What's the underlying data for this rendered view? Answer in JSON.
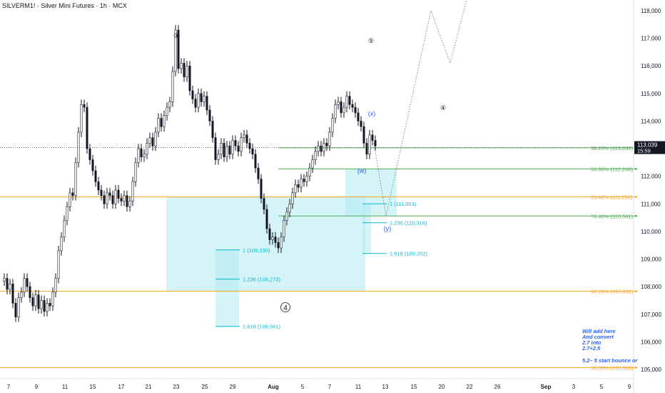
{
  "header": {
    "symbol": "SILVERM1! · Silver Mini Futures · 1h · MCX"
  },
  "colors": {
    "candle": "#131722",
    "fib_orange": "#f7a21b",
    "fib_green": "#4caf50",
    "ext_blue": "#00bcd4",
    "box_fill": "#b2ebf2",
    "wave_blue": "#2962ff",
    "wave_black": "#131722"
  },
  "chart_data": {
    "type": "candlestick",
    "title": "SILVERM1! · Silver Mini Futures · 1h · MCX",
    "ylim": [
      104600,
      118500
    ],
    "y_ticks": [
      "118,000",
      "117,000",
      "116,000",
      "115,000",
      "114,000",
      "113,000",
      "112,000",
      "111,000",
      "110,000",
      "109,000",
      "108,000",
      "107,000",
      "106,000",
      "105,000"
    ],
    "x_tick_labels": [
      "7",
      "9",
      "11",
      "15",
      "17",
      "21",
      "23",
      "25",
      "29",
      "Aug",
      "5",
      "7",
      "11",
      "13",
      "15",
      "20",
      "22",
      "26",
      "Sep",
      "3",
      "5",
      "9"
    ],
    "last_price": "113,039",
    "last_time": "15:59",
    "price_path": [
      [
        0,
        108200
      ],
      [
        6,
        108300
      ],
      [
        10,
        107900
      ],
      [
        14,
        108100
      ],
      [
        18,
        107400
      ],
      [
        22,
        106900
      ],
      [
        26,
        107600
      ],
      [
        30,
        107800
      ],
      [
        34,
        108300
      ],
      [
        38,
        108000
      ],
      [
        42,
        107600
      ],
      [
        46,
        107300
      ],
      [
        50,
        107700
      ],
      [
        54,
        107200
      ],
      [
        58,
        107500
      ],
      [
        62,
        107100
      ],
      [
        66,
        107400
      ],
      [
        70,
        107300
      ],
      [
        74,
        107800
      ],
      [
        78,
        108300
      ],
      [
        82,
        109300
      ],
      [
        86,
        109800
      ],
      [
        90,
        110400
      ],
      [
        94,
        110900
      ],
      [
        98,
        111400
      ],
      [
        102,
        111300
      ],
      [
        106,
        112500
      ],
      [
        110,
        113600
      ],
      [
        114,
        114600
      ],
      [
        118,
        114500
      ],
      [
        122,
        113000
      ],
      [
        126,
        112600
      ],
      [
        130,
        112200
      ],
      [
        134,
        111800
      ],
      [
        138,
        111500
      ],
      [
        142,
        111300
      ],
      [
        146,
        111000
      ],
      [
        150,
        111400
      ],
      [
        154,
        111300
      ],
      [
        158,
        111000
      ],
      [
        162,
        111500
      ],
      [
        166,
        111200
      ],
      [
        170,
        111100
      ],
      [
        174,
        111300
      ],
      [
        178,
        110900
      ],
      [
        182,
        111100
      ],
      [
        186,
        111800
      ],
      [
        190,
        112500
      ],
      [
        194,
        113000
      ],
      [
        198,
        112700
      ],
      [
        202,
        112800
      ],
      [
        206,
        113200
      ],
      [
        210,
        113400
      ],
      [
        214,
        113100
      ],
      [
        218,
        113600
      ],
      [
        222,
        114100
      ],
      [
        226,
        113800
      ],
      [
        230,
        114200
      ],
      [
        234,
        114500
      ],
      [
        238,
        114700
      ],
      [
        242,
        115800
      ],
      [
        246,
        117300
      ],
      [
        250,
        115900
      ],
      [
        254,
        116100
      ],
      [
        258,
        115600
      ],
      [
        262,
        116000
      ],
      [
        266,
        115100
      ],
      [
        270,
        114800
      ],
      [
        274,
        114500
      ],
      [
        278,
        115000
      ],
      [
        282,
        114700
      ],
      [
        286,
        114900
      ],
      [
        290,
        114400
      ],
      [
        294,
        114000
      ],
      [
        298,
        113400
      ],
      [
        302,
        112600
      ],
      [
        306,
        112800
      ],
      [
        310,
        113200
      ],
      [
        314,
        112700
      ],
      [
        318,
        113100
      ],
      [
        322,
        112800
      ],
      [
        326,
        113300
      ],
      [
        330,
        113100
      ],
      [
        334,
        112900
      ],
      [
        338,
        113400
      ],
      [
        342,
        113500
      ],
      [
        346,
        113200
      ],
      [
        350,
        113000
      ],
      [
        354,
        112800
      ],
      [
        358,
        112300
      ],
      [
        362,
        111900
      ],
      [
        366,
        111200
      ],
      [
        370,
        110800
      ],
      [
        374,
        110100
      ],
      [
        378,
        109700
      ],
      [
        382,
        109800
      ],
      [
        386,
        109600
      ],
      [
        390,
        109400
      ],
      [
        394,
        109800
      ],
      [
        398,
        110400
      ],
      [
        402,
        110700
      ],
      [
        406,
        111000
      ],
      [
        410,
        111400
      ],
      [
        414,
        111700
      ],
      [
        418,
        111600
      ],
      [
        422,
        111900
      ],
      [
        426,
        111800
      ],
      [
        430,
        112000
      ],
      [
        434,
        112300
      ],
      [
        438,
        112600
      ],
      [
        442,
        112900
      ],
      [
        446,
        113100
      ],
      [
        450,
        112900
      ],
      [
        454,
        113200
      ],
      [
        458,
        113100
      ],
      [
        462,
        113600
      ],
      [
        466,
        114100
      ],
      [
        470,
        114600
      ],
      [
        474,
        114700
      ],
      [
        478,
        114300
      ],
      [
        482,
        114500
      ],
      [
        486,
        114900
      ],
      [
        490,
        114600
      ],
      [
        494,
        114500
      ],
      [
        498,
        114300
      ],
      [
        502,
        114000
      ],
      [
        506,
        113800
      ],
      [
        510,
        113200
      ],
      [
        514,
        112800
      ],
      [
        518,
        113500
      ],
      [
        522,
        113300
      ],
      [
        526,
        113100
      ]
    ],
    "fib_retracements": [
      {
        "label": "23.60% (111,252)",
        "price": 111252,
        "color": "#f7a21b"
      },
      {
        "label": "38.20% (107,832)",
        "price": 107832,
        "color": "#f7a21b"
      },
      {
        "label": "50.00% (105,068)",
        "price": 105068,
        "color": "#f7a21b"
      },
      {
        "label": "38.20% (113,030)",
        "price": 113030,
        "color": "#4caf50"
      },
      {
        "label": "50.00% (112,268)",
        "price": 112268,
        "color": "#4caf50"
      },
      {
        "label": "76.40% (110,561)",
        "price": 110561,
        "color": "#4caf50"
      }
    ],
    "extensions": [
      {
        "label": "1 (109,330)",
        "price": 109330
      },
      {
        "label": "1.236 (108,273)",
        "price": 108273
      },
      {
        "label": "1.618 (106,561)",
        "price": 106561
      },
      {
        "label": "1 (111,003)",
        "price": 111003
      },
      {
        "label": "1.236 (110,316)",
        "price": 110316
      },
      {
        "label": "1.618 (109,202)",
        "price": 109202
      }
    ],
    "wave_labels": [
      {
        "text": "③",
        "color": "#131722"
      },
      {
        "text": "⑤",
        "color": "#131722"
      },
      {
        "text": "④",
        "color": "#131722"
      },
      {
        "text": "4",
        "color": "#131722"
      },
      {
        "text": "(x)",
        "color": "#2962ff"
      },
      {
        "text": "(w)",
        "color": "#2962ff"
      },
      {
        "text": "(y)",
        "color": "#2962ff"
      }
    ]
  },
  "notes": {
    "main": "Will add here\nAnd convert\n2.7 into\n2.7+2.5",
    "second": "5.2– 5 start bounce or"
  }
}
